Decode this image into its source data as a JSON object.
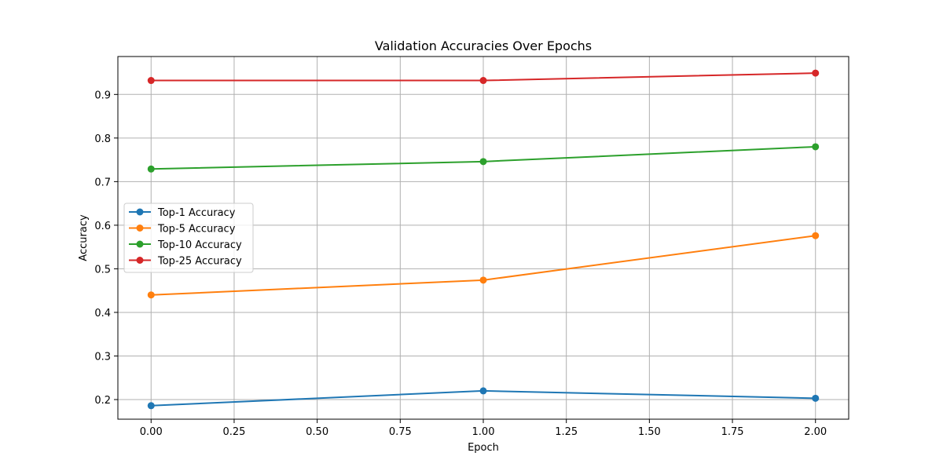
{
  "chart_data": {
    "type": "line",
    "title": "Validation Accuracies Over Epochs",
    "xlabel": "Epoch",
    "ylabel": "Accuracy",
    "x": [
      0,
      1,
      2
    ],
    "xlim": [
      -0.1,
      2.1
    ],
    "ylim": [
      0.155,
      0.987
    ],
    "xticks": [
      "0.00",
      "0.25",
      "0.50",
      "0.75",
      "1.00",
      "1.25",
      "1.50",
      "1.75",
      "2.00"
    ],
    "yticks": [
      "0.2",
      "0.3",
      "0.4",
      "0.5",
      "0.6",
      "0.7",
      "0.8",
      "0.9"
    ],
    "grid": true,
    "legend_position": "center-left",
    "series": [
      {
        "name": "Top-1 Accuracy",
        "color": "#1f77b4",
        "values": [
          0.186,
          0.22,
          0.203
        ]
      },
      {
        "name": "Top-5 Accuracy",
        "color": "#ff7f0e",
        "values": [
          0.44,
          0.474,
          0.576
        ]
      },
      {
        "name": "Top-10 Accuracy",
        "color": "#2ca02c",
        "values": [
          0.729,
          0.746,
          0.78
        ]
      },
      {
        "name": "Top-25 Accuracy",
        "color": "#d62728",
        "values": [
          0.932,
          0.932,
          0.949
        ]
      }
    ]
  }
}
